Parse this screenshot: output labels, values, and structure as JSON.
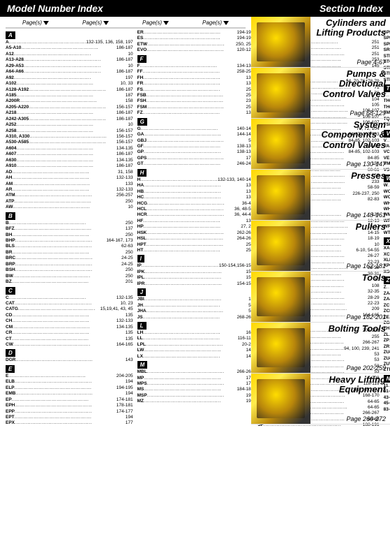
{
  "header": {
    "left": "Model Number Index",
    "right": "Section Index"
  },
  "col_header": "Page(s)",
  "letters": {
    "A": [
      [
        "A",
        "132-135, 136, 158, 197"
      ],
      [
        "A5-A10",
        "186-187"
      ],
      [
        "A12",
        "10"
      ],
      [
        "A13-A28",
        "186-187"
      ],
      [
        "A29-A53",
        "10"
      ],
      [
        "A64-A66",
        "186-187"
      ],
      [
        "A92",
        "197"
      ],
      [
        "A102",
        "10, 33"
      ],
      [
        "A128-A192",
        "186-187"
      ],
      [
        "A185",
        "187"
      ],
      [
        "A200R",
        "158"
      ],
      [
        "A205-A220",
        "156-157"
      ],
      [
        "A218",
        "186-187"
      ],
      [
        "A242-A305",
        "186-187"
      ],
      [
        "A252",
        "10"
      ],
      [
        "A258",
        "156-157"
      ],
      [
        "A310, A330",
        "156-157"
      ],
      [
        "A530-A585",
        "156-157"
      ],
      [
        "A604",
        "134-135"
      ],
      [
        "A607",
        "186-187"
      ],
      [
        "A630",
        "134-135"
      ],
      [
        "A910",
        "186-187"
      ],
      [
        "AD",
        "31, 158"
      ],
      [
        "AH",
        "132-133"
      ],
      [
        "AM",
        "133"
      ],
      [
        "AR",
        "132-133"
      ],
      [
        "ATM",
        "256-257"
      ],
      [
        "ATP",
        "250"
      ],
      [
        "AW",
        "10"
      ]
    ],
    "B": [
      [
        "B",
        "250"
      ],
      [
        "BFZ",
        "137"
      ],
      [
        "BH",
        "250"
      ],
      [
        "BHP",
        "164-167, 173"
      ],
      [
        "BLS",
        "62-63"
      ],
      [
        "BR",
        "250"
      ],
      [
        "BRC",
        "24-25"
      ],
      [
        "BRP",
        "24-25"
      ],
      [
        "BSH",
        "250"
      ],
      [
        "BW",
        "250"
      ],
      [
        "BZ",
        "201"
      ]
    ],
    "C": [
      [
        "C",
        "132-135"
      ],
      [
        "CAT",
        "10, 23"
      ],
      [
        "CATG",
        "15,19,41, 43, 45"
      ],
      [
        "CD",
        "135"
      ],
      [
        "CH",
        "132-133"
      ],
      [
        "CM",
        "134-135"
      ],
      [
        "CR",
        "135"
      ],
      [
        "CT",
        "135"
      ],
      [
        "CW",
        "164-165"
      ]
    ],
    "D": [
      [
        "DGR",
        "143"
      ]
    ],
    "E": [
      [
        "E",
        "204-205"
      ],
      [
        "ELB",
        "194"
      ],
      [
        "ELP",
        "194-195"
      ],
      [
        "EMB",
        "194"
      ],
      [
        "EP",
        "174-181"
      ],
      [
        "EPH",
        "178-181"
      ],
      [
        "EPP",
        "174-177"
      ],
      [
        "EPT",
        "194"
      ],
      [
        "EPX",
        "177"
      ]
    ],
    "_E2": [
      [
        "ER",
        "194-195"
      ],
      [
        "ES",
        "194-195"
      ],
      [
        "ETW",
        "250, 251"
      ],
      [
        "EVO",
        "120-121"
      ]
    ],
    "F": [
      [
        "F",
        "134-135"
      ],
      [
        "FF",
        "258-259"
      ],
      [
        "FH",
        "135"
      ],
      [
        "FR",
        "135"
      ],
      [
        "FS",
        "254"
      ],
      [
        "FSB",
        "254"
      ],
      [
        "FSH",
        "235"
      ],
      [
        "FSM",
        "255"
      ],
      [
        "FZ",
        "137"
      ]
    ],
    "G": [
      [
        "G",
        "140-141"
      ],
      [
        "GA",
        "144-145"
      ],
      [
        "GBJ",
        "57"
      ],
      [
        "GF",
        "138-139"
      ],
      [
        "GP",
        "138-139"
      ],
      [
        "GPS",
        "172"
      ],
      [
        "GT",
        "246-247"
      ]
    ],
    "H": [
      [
        "H",
        "132-133, 140-141"
      ],
      [
        "HA",
        "133"
      ],
      [
        "HB",
        "133"
      ],
      [
        "HC",
        "133"
      ],
      [
        "HCG",
        "36-43"
      ],
      [
        "HCL",
        "36, 48-51"
      ],
      [
        "HCR",
        "36, 44-47"
      ],
      [
        "HF",
        "136"
      ],
      [
        "HP",
        "27, 29"
      ],
      [
        "HSK",
        "262-263"
      ],
      [
        "HSL",
        "264-265"
      ],
      [
        "HPT",
        "254"
      ],
      [
        "HT",
        "250"
      ]
    ],
    "I": [
      [
        "IP",
        "150-154,156-157"
      ],
      [
        "IPK",
        "158"
      ],
      [
        "IPL",
        "158"
      ],
      [
        "IPR",
        "154-155"
      ]
    ],
    "J": [
      [
        "JBI",
        "10"
      ],
      [
        "JH",
        "56"
      ],
      [
        "JHA",
        "56"
      ],
      [
        "JS",
        "268-269"
      ]
    ],
    "L": [
      [
        "LH",
        "160"
      ],
      [
        "LL",
        "116-117"
      ],
      [
        "LPL",
        "20-21"
      ],
      [
        "LW",
        "142"
      ],
      [
        "LX",
        "142"
      ]
    ],
    "M": [
      [
        "MBL",
        "266-267"
      ],
      [
        "MP",
        "174"
      ],
      [
        "MPS",
        "171"
      ],
      [
        "MS",
        "184-187"
      ],
      [
        "MSP",
        "193"
      ],
      [
        "MZ",
        "195"
      ]
    ],
    "N": [
      [
        "N",
        "251"
      ],
      [
        "NC",
        "251"
      ],
      [
        "NCB",
        "251"
      ],
      [
        "NS",
        "253"
      ],
      [
        "NV",
        "145"
      ]
    ],
    "P": [
      [
        "P",
        "54, 70-76, 78-79"
      ],
      [
        "P392AL",
        "71"
      ],
      [
        "P392FP",
        "76"
      ],
      [
        "PA",
        "104"
      ],
      [
        "PAM",
        "105"
      ],
      [
        "PAMG",
        "106-107"
      ],
      [
        "PATG",
        "106-107"
      ],
      [
        "PARG",
        "106-107"
      ],
      [
        "PC",
        "70, 72, 104"
      ],
      [
        "PE",
        "84-87, 102-103"
      ],
      [
        "PEM",
        "84-85, 102-103"
      ],
      [
        "PEJ",
        "84-85"
      ],
      [
        "PER",
        "84-85, 102-103"
      ],
      [
        "PES",
        "84-85"
      ],
      [
        "PK",
        "158"
      ],
      [
        "PL",
        "60-61"
      ],
      [
        "PMB",
        "158"
      ],
      [
        "PMU",
        "233"
      ],
      [
        "PR",
        "58-59"
      ],
      [
        "PTW",
        "226-237, 250"
      ],
      [
        "PU",
        "82-83"
      ]
    ],
    "R": [
      [
        "RA",
        "133"
      ],
      [
        "RAC",
        "12-13"
      ],
      [
        "RACH",
        "16-17"
      ],
      [
        "RACL",
        "14-15"
      ],
      [
        "RAR",
        "18-19"
      ],
      [
        "RB",
        "10"
      ],
      [
        "RC",
        "6-10, 54-55"
      ],
      [
        "RCH",
        "26-27"
      ],
      [
        "RCS",
        "22-23"
      ],
      [
        "RCSM",
        "22-23"
      ],
      [
        "RD",
        "30-31"
      ],
      [
        "REB",
        "10"
      ],
      [
        "RFL",
        "108"
      ],
      [
        "RR",
        "32-35"
      ],
      [
        "RRH",
        "28-29"
      ],
      [
        "RSM",
        "22-23"
      ],
      [
        "RTEX",
        "209"
      ],
      [
        "RWH",
        "164-165"
      ]
    ],
    "S": [
      [
        "S",
        "206-208"
      ],
      [
        "SB",
        "255"
      ],
      [
        "SBL",
        "266-267"
      ],
      [
        "SBZ",
        "94, 100, 239, 241"
      ],
      [
        "SC",
        "53"
      ],
      [
        "SCH",
        "53"
      ],
      [
        "SCL",
        "53"
      ],
      [
        "SCR",
        "53"
      ],
      [
        "SDA",
        "208"
      ],
      [
        "SFP",
        "118-119"
      ],
      [
        "SGH",
        "168-169, 172"
      ],
      [
        "SGM",
        "168-170"
      ],
      [
        "SHS",
        "64-65"
      ],
      [
        "SHAS",
        "64-65"
      ],
      [
        "SLB",
        "266-267"
      ],
      [
        "SOH",
        "64-65"
      ],
      [
        "SP",
        "188-191"
      ]
    ],
    "_S2": [
      [
        "SPD",
        "188-189"
      ],
      [
        "SPK",
        "188"
      ],
      [
        "SPMT",
        "270"
      ],
      [
        "SRSX",
        "209"
      ],
      [
        "STB",
        "200-201"
      ],
      [
        "STC",
        "198"
      ],
      [
        "STF",
        "254-255"
      ],
      [
        "STN",
        "251"
      ],
      [
        "STP",
        "189"
      ]
    ],
    "T": [
      [
        "T",
        "135, 142"
      ],
      [
        "THC",
        "238, 241-242"
      ],
      [
        "THQ",
        "238, 241-242"
      ],
      [
        "TM",
        "234-235"
      ],
      [
        "TQ",
        "234-235"
      ],
      [
        "TSP",
        "209, 225"
      ]
    ],
    "V": [
      [
        "V",
        "54, 145-147"
      ],
      [
        "VA-2",
        "105"
      ],
      [
        "VC",
        "126-127"
      ],
      [
        "VE",
        "146"
      ],
      [
        "VM",
        "124-125, 127"
      ],
      [
        "VS",
        "128"
      ]
    ],
    "W": [
      [
        "W",
        "212-223"
      ],
      [
        "WCB",
        "198-199"
      ],
      [
        "WCR",
        "224"
      ],
      [
        "WHC",
        "198"
      ],
      [
        "WHR",
        "198"
      ],
      [
        "WMC",
        "199"
      ],
      [
        "WR",
        "197"
      ],
      [
        "WRP",
        "225"
      ],
      [
        "WTE",
        "225"
      ]
    ],
    "X": [
      [
        "XA",
        "108-109"
      ],
      [
        "XC",
        "80-81"
      ],
      [
        "XLK1",
        "108"
      ],
      [
        "XPG1",
        "108"
      ],
      [
        "XSC1",
        "108"
      ]
    ],
    "Z": [
      [
        "Z",
        "135"
      ],
      [
        "ZA4",
        "110-111"
      ],
      [
        "ZA4T",
        "242-245"
      ],
      [
        "ZC",
        "94-95, 100-101"
      ],
      [
        "ZCP",
        "125"
      ],
      [
        "ZE",
        "96-99, 240-241"
      ],
      [
        "ZG",
        "112-114"
      ],
      [
        "ZH",
        "95, 101, 249"
      ],
      [
        "ZL",
        "94-95,100-101"
      ],
      [
        "ZP",
        "94-95, 100-101"
      ],
      [
        "ZR",
        "94-95, 101-102, 136"
      ],
      [
        "ZU4",
        "88-95"
      ],
      [
        "ZU4T",
        "236-239"
      ],
      [
        "ZUTP",
        "248-249"
      ],
      [
        "ZTM",
        "239, 245"
      ]
    ],
    "Numeric": [
      [
        "11",
        "78-79, 142"
      ],
      [
        "41-",
        "79"
      ],
      [
        "43-",
        "79, 142"
      ],
      [
        "45-",
        "136"
      ],
      [
        "83-",
        "79, 142"
      ]
    ]
  },
  "sections": [
    {
      "title": "Cylinders and Lifting Products",
      "page": "Page 4-67"
    },
    {
      "title": "Pumps & Directional Control Valves",
      "page": "Page 68-129"
    },
    {
      "title": "System Components & Control Valves",
      "page": "Page 130-147"
    },
    {
      "title": "Presses",
      "page": "Page 148-161"
    },
    {
      "title": "Pullers",
      "page": "Page 162-181"
    },
    {
      "title": "Tools",
      "page": "Page 182-201"
    },
    {
      "title": "Bolting Tools",
      "page": "Page 202-259"
    },
    {
      "title": "Heavy Lifting Equipment",
      "page": "Page 260-272"
    }
  ]
}
